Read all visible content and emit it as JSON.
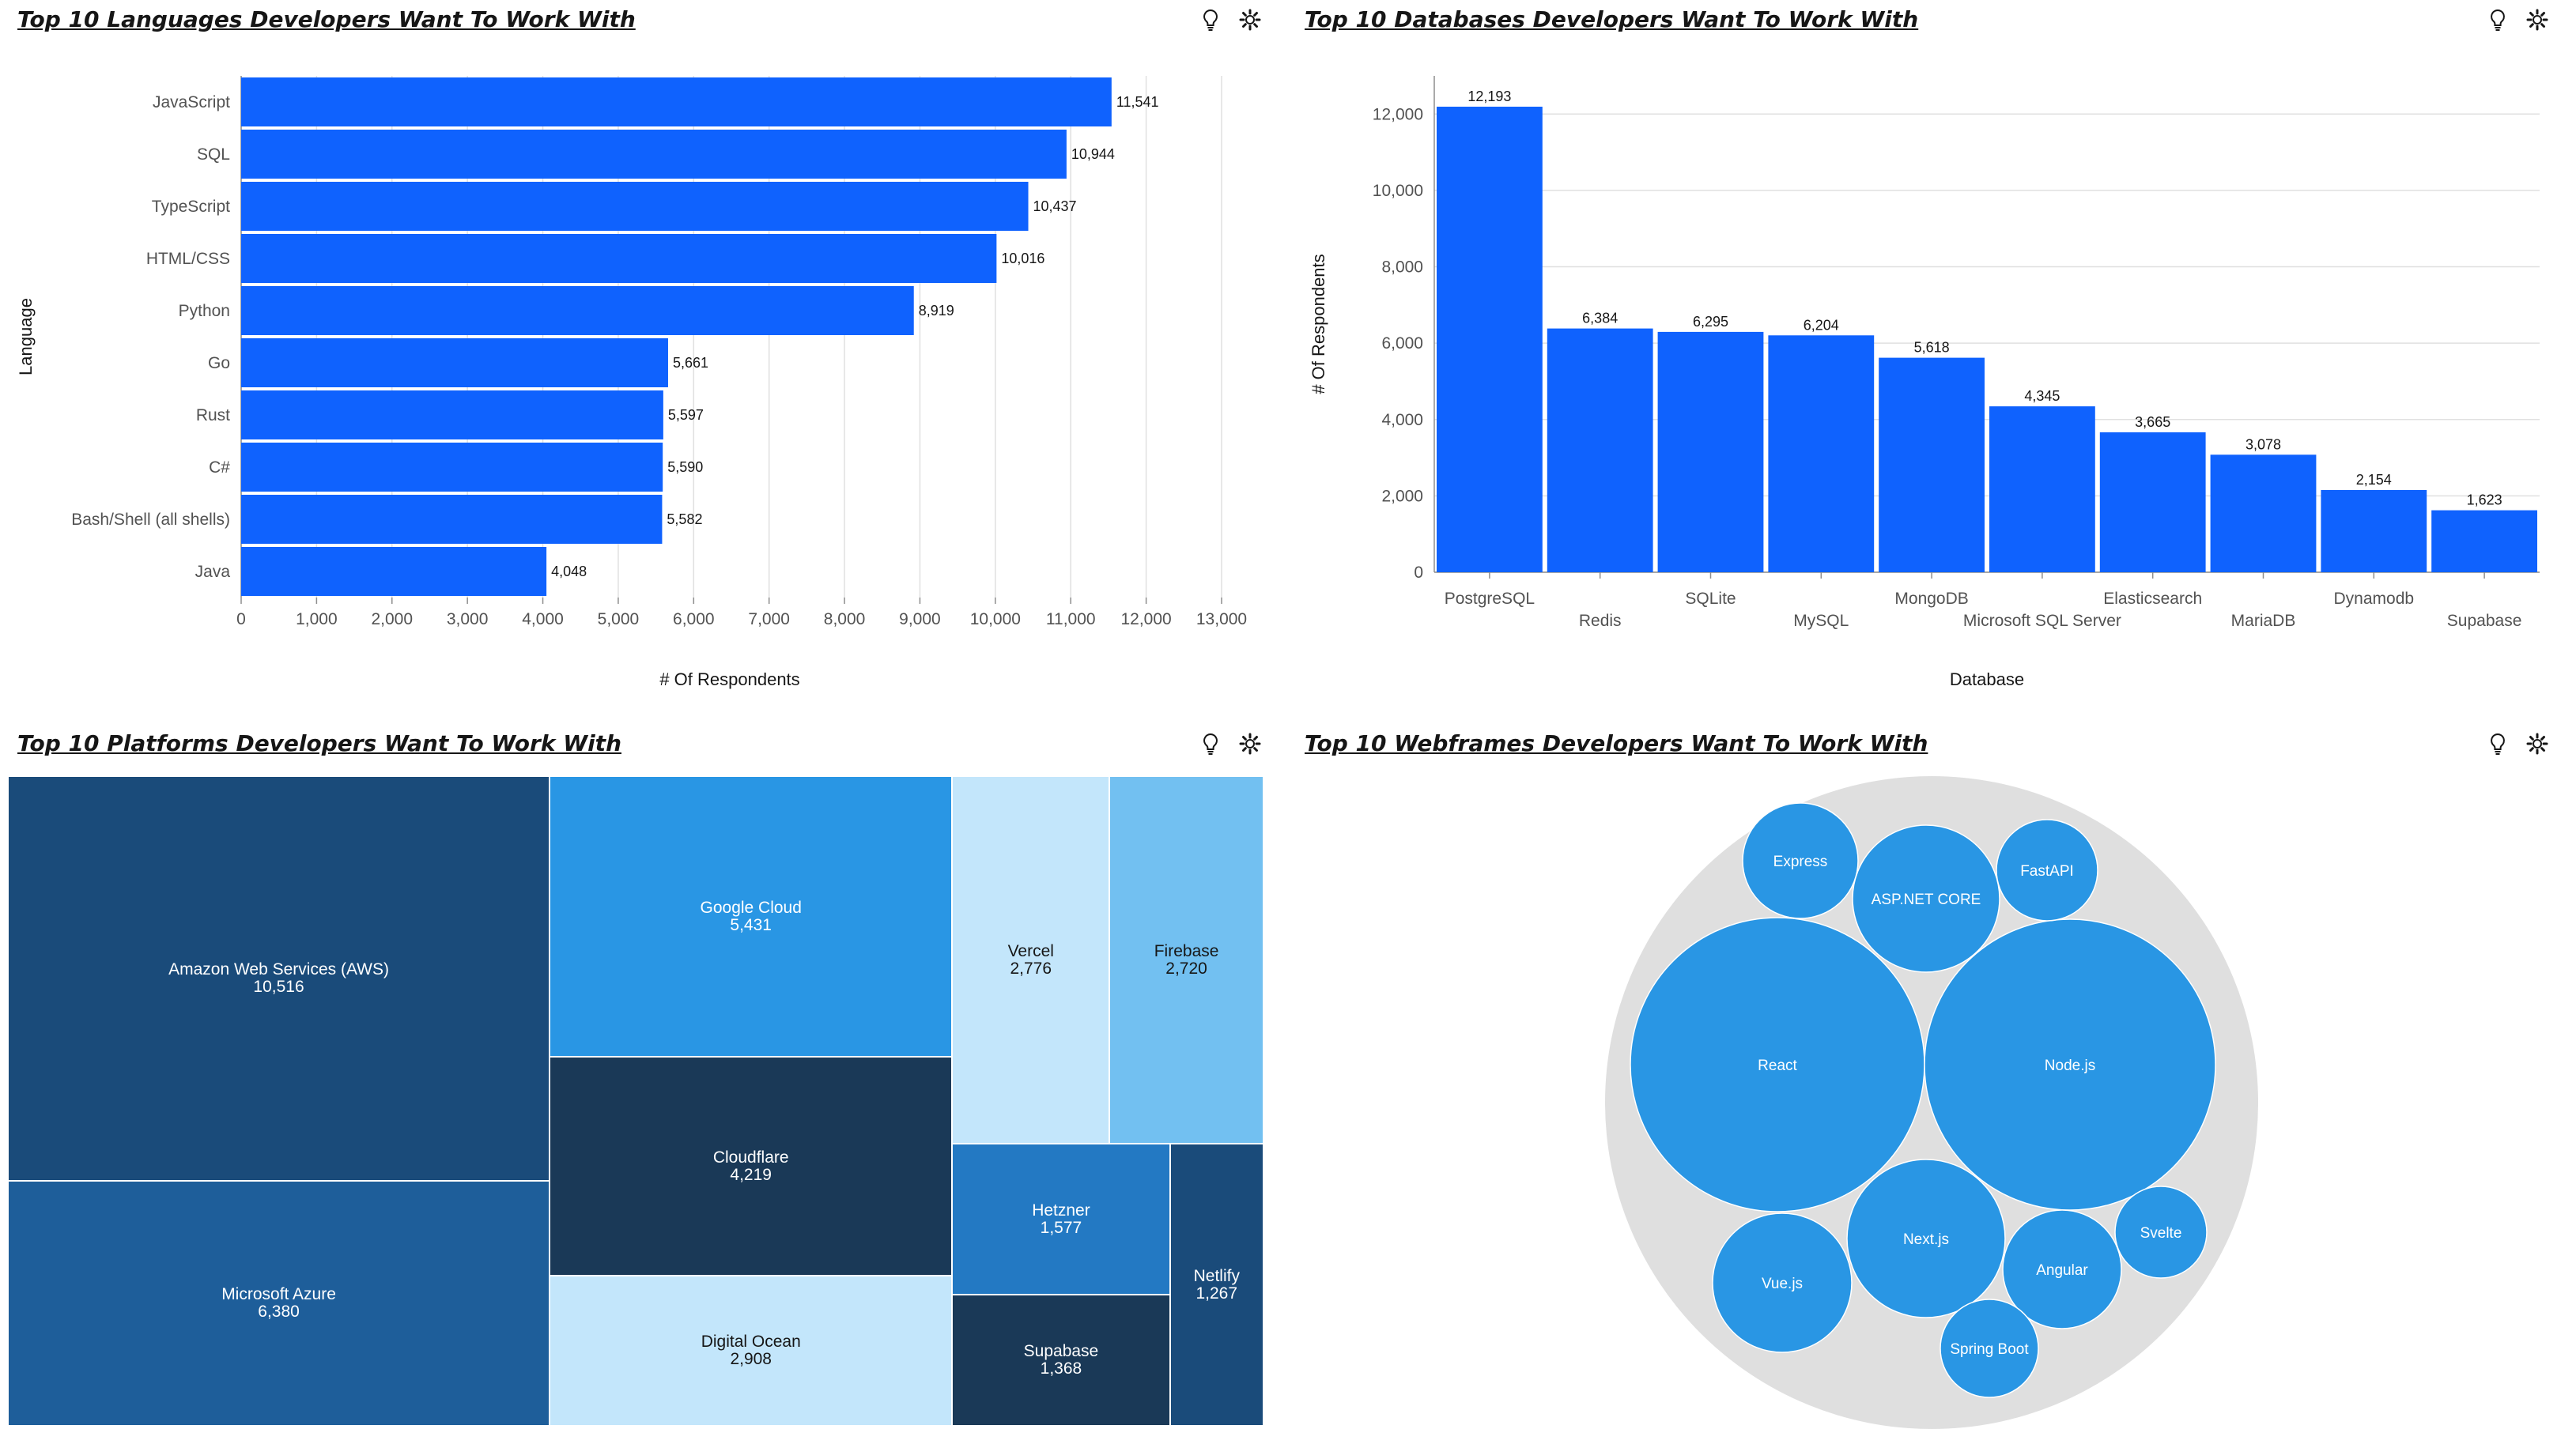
{
  "tiles": [
    {
      "title": "Top 10 Languages Developers Want To Work With"
    },
    {
      "title": "Top 10 Databases Developers Want To Work With"
    },
    {
      "title": "Top 10 Platforms Developers Want To Work With"
    },
    {
      "title": "Top 10 Webframes Developers Want To Work With"
    }
  ],
  "icons": [
    "lightbulb-icon",
    "settings-icon"
  ],
  "chart_data": [
    {
      "type": "bar",
      "orientation": "horizontal",
      "title": "Top 10 Languages Developers Want To Work With",
      "xlabel": "# Of Respondents",
      "ylabel": "Language",
      "xlim": [
        0,
        13000
      ],
      "ticks": [
        "0",
        "1,000",
        "2,000",
        "3,000",
        "4,000",
        "5,000",
        "6,000",
        "7,000",
        "8,000",
        "9,000",
        "10,000",
        "11,000",
        "12,000",
        "13,000"
      ],
      "grid": true,
      "color": "#0f62fe",
      "categories": [
        "JavaScript",
        "SQL",
        "TypeScript",
        "HTML/CSS",
        "Python",
        "Go",
        "Rust",
        "C#",
        "Bash/Shell (all shells)",
        "Java"
      ],
      "values": [
        11541,
        10944,
        10437,
        10016,
        8919,
        5661,
        5597,
        5590,
        5582,
        4048
      ],
      "value_labels": [
        "11,541",
        "10,944",
        "10,437",
        "10,016",
        "8,919",
        "5,661",
        "5,597",
        "5,590",
        "5,582",
        "4,048"
      ]
    },
    {
      "type": "bar",
      "orientation": "vertical",
      "title": "Top 10 Databases Developers Want To Work With",
      "xlabel": "Database",
      "ylabel": "# Of Respondents",
      "ylim": [
        0,
        13000
      ],
      "ticks": [
        {
          "value": 0,
          "label": "0"
        },
        {
          "value": 2000,
          "label": "2,000"
        },
        {
          "value": 4000,
          "label": "4,000"
        },
        {
          "value": 6000,
          "label": "6,000"
        },
        {
          "value": 8000,
          "label": "8,000"
        },
        {
          "value": 10000,
          "label": "10,000"
        },
        {
          "value": 12000,
          "label": "12,000"
        }
      ],
      "grid": true,
      "color": "#0f62fe",
      "categories": [
        "PostgreSQL",
        "Redis",
        "SQLite",
        "MySQL",
        "MongoDB",
        "Microsoft SQL Server",
        "Elasticsearch",
        "MariaDB",
        "Dynamodb",
        "Supabase"
      ],
      "values": [
        12193,
        6384,
        6295,
        6204,
        5618,
        4345,
        3665,
        3078,
        2154,
        1623
      ],
      "value_labels": [
        "12,193",
        "6,384",
        "6,295",
        "6,204",
        "5,618",
        "4,345",
        "3,665",
        "3,078",
        "2,154",
        "1,623"
      ]
    },
    {
      "type": "treemap",
      "title": "Top 10 Platforms Developers Want To Work With",
      "items": [
        {
          "name": "Amazon Web Services (AWS)",
          "value": 10516,
          "label": "10,516",
          "color": "#1a4b7a",
          "text_color": "#ffffff"
        },
        {
          "name": "Microsoft Azure",
          "value": 6380,
          "label": "6,380",
          "color": "#1e5e9a",
          "text_color": "#ffffff"
        },
        {
          "name": "Google Cloud",
          "value": 5431,
          "label": "5,431",
          "color": "#2996e4",
          "text_color": "#ffffff"
        },
        {
          "name": "Cloudflare",
          "value": 4219,
          "label": "4,219",
          "color": "#1a3957",
          "text_color": "#ffffff"
        },
        {
          "name": "Digital Ocean",
          "value": 2908,
          "label": "2,908",
          "color": "#c3e6fb",
          "text_color": "#161616"
        },
        {
          "name": "Vercel",
          "value": 2776,
          "label": "2,776",
          "color": "#c3e6fb",
          "text_color": "#161616"
        },
        {
          "name": "Firebase",
          "value": 2720,
          "label": "2,720",
          "color": "#72c0f1",
          "text_color": "#161616"
        },
        {
          "name": "Hetzner",
          "value": 1577,
          "label": "1,577",
          "color": "#2379c3",
          "text_color": "#ffffff"
        },
        {
          "name": "Supabase",
          "value": 1368,
          "label": "1,368",
          "color": "#1a3957",
          "text_color": "#ffffff"
        },
        {
          "name": "Netlify",
          "value": 1267,
          "label": "1,267",
          "color": "#1a4b7a",
          "text_color": "#ffffff"
        }
      ]
    },
    {
      "type": "bubble",
      "title": "Top 10 Webframes Developers Want To Work With",
      "color": "#2996e4",
      "container_color": "#dfdfdf",
      "items": [
        "React",
        "Node.js",
        "Next.js",
        "ASP.NET CORE",
        "Angular",
        "Vue.js",
        "Express",
        "FastAPI",
        "Spring Boot",
        "Svelte"
      ]
    }
  ]
}
